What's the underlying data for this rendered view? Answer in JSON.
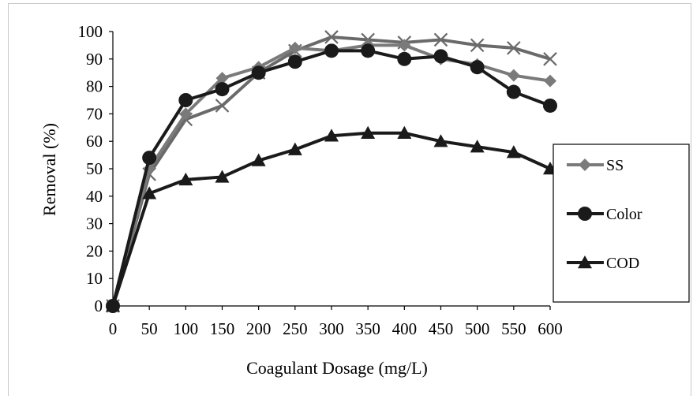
{
  "chart_data": {
    "type": "line",
    "title": "",
    "xlabel": "Coagulant Dosage (mg/L)",
    "ylabel": "Removal (%)",
    "x": [
      0,
      50,
      100,
      150,
      200,
      250,
      300,
      350,
      400,
      450,
      500,
      550,
      600
    ],
    "x_tick_labels": [
      "0",
      "50",
      "100",
      "150",
      "200",
      "250",
      "300",
      "350",
      "400",
      "450",
      "500",
      "550",
      "600"
    ],
    "y_tick_labels": [
      "0",
      "10",
      "20",
      "30",
      "40",
      "50",
      "60",
      "70",
      "80",
      "90",
      "100"
    ],
    "ylim": [
      0,
      100
    ],
    "grid": false,
    "legend_position": "right",
    "series": [
      {
        "name": "",
        "marker": "x",
        "color": "#6a6a6a",
        "values": [
          0,
          48,
          68,
          73,
          85,
          93,
          98,
          97,
          96,
          97,
          95,
          94,
          90
        ]
      },
      {
        "name": "SS",
        "marker": "diamond",
        "color": "#7a7a7a",
        "values": [
          0,
          50,
          70,
          83,
          87,
          94,
          93,
          95,
          95,
          90,
          88,
          84,
          82
        ]
      },
      {
        "name": "Color",
        "marker": "circle",
        "color": "#1a1a1a",
        "values": [
          0,
          54,
          75,
          79,
          85,
          89,
          93,
          93,
          90,
          91,
          87,
          78,
          73
        ]
      },
      {
        "name": "COD",
        "marker": "triangle",
        "color": "#1a1a1a",
        "values": [
          0,
          41,
          46,
          47,
          53,
          57,
          62,
          63,
          63,
          60,
          58,
          56,
          50
        ]
      }
    ]
  }
}
